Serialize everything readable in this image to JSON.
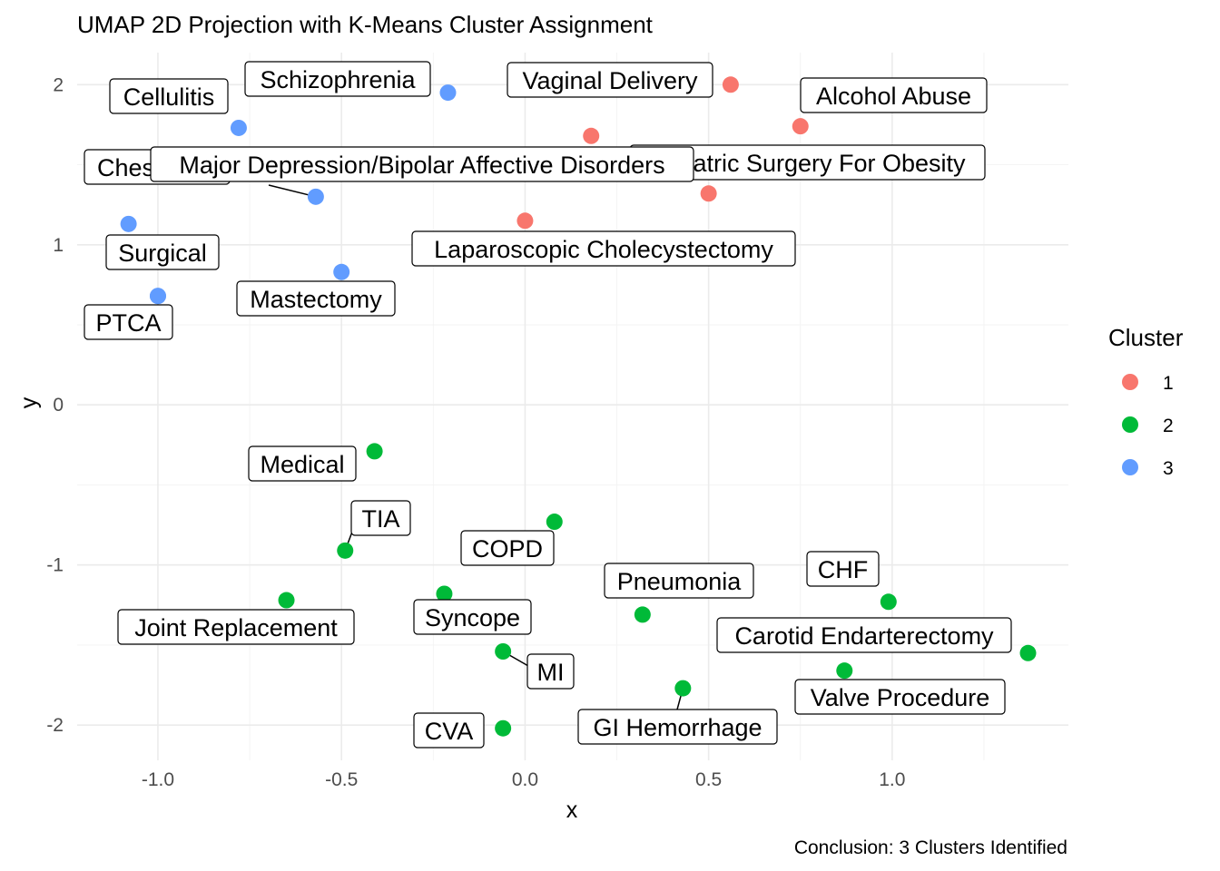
{
  "chart_data": {
    "type": "scatter",
    "title": "UMAP 2D Projection with K-Means Cluster Assignment",
    "caption": "Conclusion: 3 Clusters Identified",
    "xlabel": "x",
    "ylabel": "y",
    "xlim": [
      -1.22,
      1.48
    ],
    "ylim": [
      -2.22,
      2.2
    ],
    "x_ticks": [
      -1.0,
      -0.5,
      0.0,
      0.5,
      1.0
    ],
    "x_tick_labels": [
      "-1.0",
      "-0.5",
      "0.0",
      "0.5",
      "1.0"
    ],
    "y_ticks": [
      -2,
      -1,
      0,
      1,
      2
    ],
    "y_tick_labels": [
      "-2",
      "-1",
      "0",
      "1",
      "2"
    ],
    "grid": true,
    "legend": {
      "title": "Cluster",
      "position": "right",
      "entries": [
        {
          "label": "1",
          "color": "#F8766D"
        },
        {
          "label": "2",
          "color": "#00BA38"
        },
        {
          "label": "3",
          "color": "#619CFF"
        }
      ]
    },
    "points": [
      {
        "label": "Vaginal Delivery",
        "cluster": "1",
        "x": 0.56,
        "y": 2.0
      },
      {
        "label": "Alcohol Abuse",
        "cluster": "1",
        "x": 0.75,
        "y": 1.74
      },
      {
        "label": "Bariatric Surgery For Obesity",
        "cluster": "1",
        "x": 0.5,
        "y": 1.32
      },
      {
        "label": "Laparoscopic Cholecystectomy",
        "cluster": "1",
        "x": 0.0,
        "y": 1.15
      },
      {
        "label": "",
        "cluster": "1",
        "x": 0.18,
        "y": 1.68
      },
      {
        "label": "Schizophrenia",
        "cluster": "3",
        "x": -0.21,
        "y": 1.95
      },
      {
        "label": "Cellulitis",
        "cluster": "3",
        "x": -0.78,
        "y": 1.73
      },
      {
        "label": "Major Depression/Bipolar Affective Disorders",
        "cluster": "3",
        "x": -0.57,
        "y": 1.3
      },
      {
        "label": "Chest Pain",
        "cluster": "3",
        "x": -1.08,
        "y": 1.13
      },
      {
        "label": "Surgical",
        "cluster": "3",
        "x": -1.0,
        "y": 0.68
      },
      {
        "label": "Mastectomy",
        "cluster": "3",
        "x": -0.5,
        "y": 0.83
      },
      {
        "label": "PTCA",
        "cluster": "3",
        "x": -1.0,
        "y": 0.68
      },
      {
        "label": "Medical",
        "cluster": "2",
        "x": -0.41,
        "y": -0.29
      },
      {
        "label": "TIA",
        "cluster": "2",
        "x": -0.49,
        "y": -0.91
      },
      {
        "label": "COPD",
        "cluster": "2",
        "x": 0.08,
        "y": -0.73
      },
      {
        "label": "Joint Replacement",
        "cluster": "2",
        "x": -0.65,
        "y": -1.22
      },
      {
        "label": "Syncope",
        "cluster": "2",
        "x": -0.22,
        "y": -1.18
      },
      {
        "label": "MI",
        "cluster": "2",
        "x": -0.06,
        "y": -1.54
      },
      {
        "label": "Pneumonia",
        "cluster": "2",
        "x": 0.32,
        "y": -1.31
      },
      {
        "label": "CHF",
        "cluster": "2",
        "x": 0.99,
        "y": -1.23
      },
      {
        "label": "Carotid Endarterectomy",
        "cluster": "2",
        "x": 1.37,
        "y": -1.55
      },
      {
        "label": "Valve Procedure",
        "cluster": "2",
        "x": 0.87,
        "y": -1.66
      },
      {
        "label": "GI Hemorrhage",
        "cluster": "2",
        "x": 0.43,
        "y": -1.77
      },
      {
        "label": "CVA",
        "cluster": "2",
        "x": -0.06,
        "y": -2.02
      }
    ]
  }
}
